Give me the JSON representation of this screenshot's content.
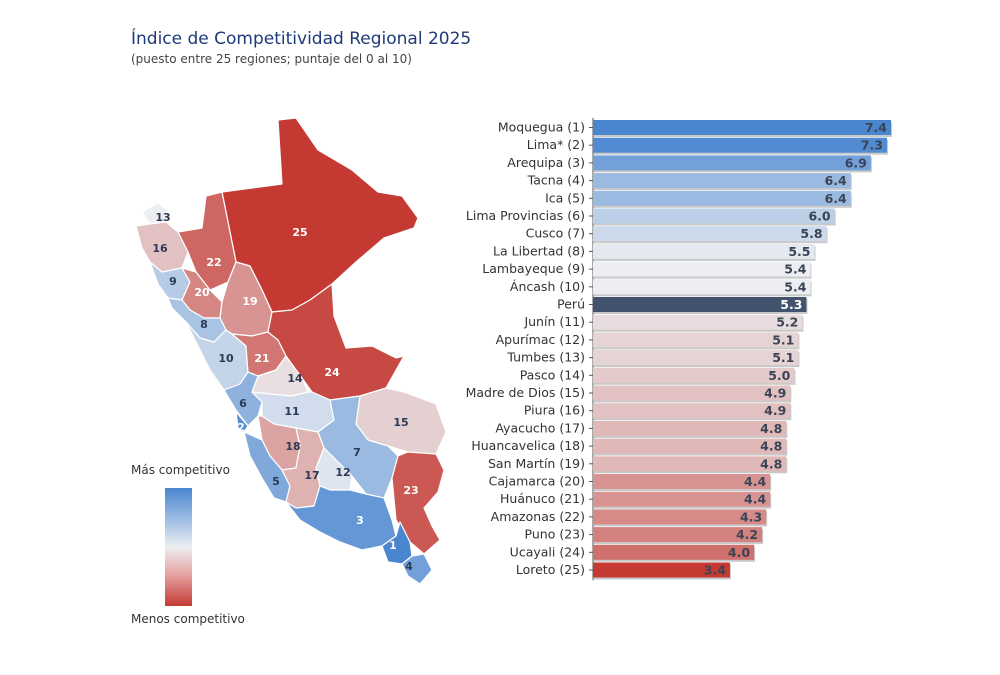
{
  "title": "Índice de Competitividad Regional 2025",
  "subtitle": "(puesto entre 25 regiones; puntaje del 0 al 10)",
  "legend": {
    "top": "Más competitivo",
    "bottom": "Menos competitivo"
  },
  "colors": {
    "high": "#4a86d0",
    "mid": "#eceef1",
    "low": "#c43a33",
    "national": "#44536d"
  },
  "chart_data": {
    "type": "bar",
    "orientation": "horizontal",
    "title": "Índice de Competitividad Regional 2025",
    "subtitle": "(puesto entre 25 regiones; puntaje del 0 al 10)",
    "categories": [
      "Moquegua (1)",
      "Lima* (2)",
      "Arequipa (3)",
      "Tacna (4)",
      "Ica (5)",
      "Lima Provincias (6)",
      "Cusco (7)",
      "La Libertad (8)",
      "Lambayeque (9)",
      "Áncash (10)",
      "Perú",
      "Junín (11)",
      "Apurímac (12)",
      "Tumbes (13)",
      "Pasco (14)",
      "Madre de Dios (15)",
      "Piura (16)",
      "Ayacucho (17)",
      "Huancavelica (18)",
      "San Martín (19)",
      "Cajamarca (20)",
      "Huánuco (21)",
      "Amazonas (22)",
      "Puno (23)",
      "Ucayali (24)",
      "Loreto (25)"
    ],
    "values": [
      7.4,
      7.3,
      6.9,
      6.4,
      6.4,
      6.0,
      5.8,
      5.5,
      5.4,
      5.4,
      5.3,
      5.2,
      5.1,
      5.1,
      5.0,
      4.9,
      4.9,
      4.8,
      4.8,
      4.8,
      4.4,
      4.4,
      4.3,
      4.2,
      4.0,
      3.4
    ],
    "value_labels": [
      "7.4",
      "7.3",
      "6.9",
      "6.4",
      "6.4",
      "6.0",
      "5.8",
      "5.5",
      "5.4",
      "5.4",
      "5.3",
      "5.2",
      "5.1",
      "5.1",
      "5.0",
      "4.9",
      "4.9",
      "4.8",
      "4.8",
      "4.8",
      "4.4",
      "4.4",
      "4.3",
      "4.2",
      "4.0",
      "3.4"
    ],
    "xlim": [
      0,
      7.4
    ],
    "grid": false
  },
  "map": {
    "regions": [
      {
        "id": "loreto",
        "rank": 25,
        "label": "25"
      },
      {
        "id": "tumbes",
        "rank": 13,
        "label": "13"
      },
      {
        "id": "piura",
        "rank": 16,
        "label": "16"
      },
      {
        "id": "amazonas",
        "rank": 22,
        "label": "22"
      },
      {
        "id": "lambayeque",
        "rank": 9,
        "label": "9"
      },
      {
        "id": "cajamarca",
        "rank": 20,
        "label": "20"
      },
      {
        "id": "sanmartin",
        "rank": 19,
        "label": "19"
      },
      {
        "id": "lalibertad",
        "rank": 8,
        "label": "8"
      },
      {
        "id": "ancash",
        "rank": 10,
        "label": "10"
      },
      {
        "id": "huanuco",
        "rank": 21,
        "label": "21"
      },
      {
        "id": "pasco",
        "rank": 14,
        "label": "14"
      },
      {
        "id": "ucayali",
        "rank": 24,
        "label": "24"
      },
      {
        "id": "limaprov",
        "rank": 6,
        "label": "6"
      },
      {
        "id": "lima",
        "rank": 2,
        "label": "2"
      },
      {
        "id": "junin",
        "rank": 11,
        "label": "11"
      },
      {
        "id": "madrededios",
        "rank": 15,
        "label": "15"
      },
      {
        "id": "cusco",
        "rank": 7,
        "label": "7"
      },
      {
        "id": "huancavelica",
        "rank": 18,
        "label": "18"
      },
      {
        "id": "ica",
        "rank": 5,
        "label": "5"
      },
      {
        "id": "ayacucho",
        "rank": 17,
        "label": "17"
      },
      {
        "id": "apurimac",
        "rank": 12,
        "label": "12"
      },
      {
        "id": "puno",
        "rank": 23,
        "label": "23"
      },
      {
        "id": "arequipa",
        "rank": 3,
        "label": "3"
      },
      {
        "id": "moquegua",
        "rank": 1,
        "label": "1"
      },
      {
        "id": "tacna",
        "rank": 4,
        "label": "4"
      }
    ]
  }
}
